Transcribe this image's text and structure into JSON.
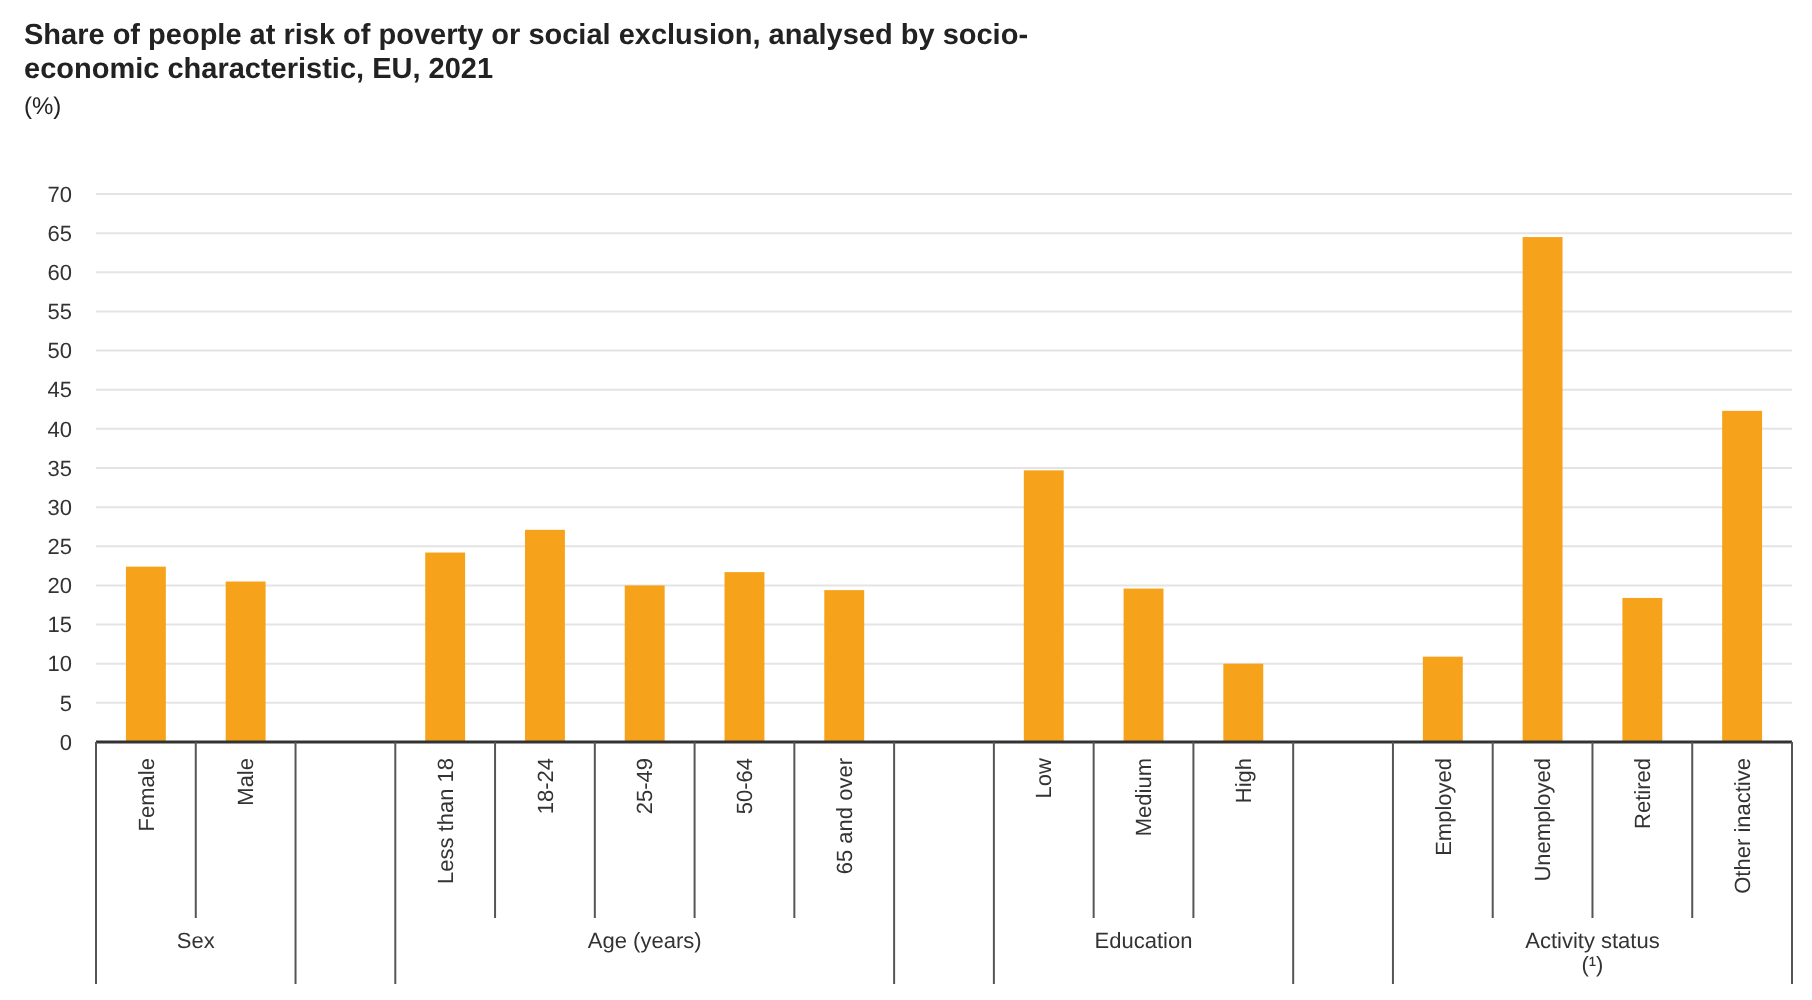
{
  "chart_data": {
    "type": "bar",
    "title": "Share of people at risk of poverty or social exclusion, analysed by socio-economic characteristic, EU, 2021",
    "ylabel": "(%)",
    "categories": [
      "Female",
      "Male",
      null,
      "Less than 18",
      "18-24",
      "25-49",
      "50-64",
      "65 and over",
      null,
      "Low",
      "Medium",
      "High",
      null,
      "Employed",
      "Unemployed",
      "Retired",
      "Other inactive"
    ],
    "values": [
      22.4,
      20.5,
      null,
      24.2,
      27.1,
      20.0,
      21.7,
      19.4,
      null,
      34.7,
      19.6,
      10.0,
      null,
      10.9,
      64.5,
      18.4,
      42.3
    ],
    "color": "#f7a21b",
    "ylim": [
      0,
      70
    ],
    "yticks": [
      0,
      5,
      10,
      15,
      20,
      25,
      30,
      35,
      40,
      45,
      50,
      55,
      60,
      65,
      70
    ],
    "grid": "y",
    "annotations": [
      "Sex",
      "Age (years)",
      "Education",
      "Activity status\n(¹)"
    ]
  }
}
